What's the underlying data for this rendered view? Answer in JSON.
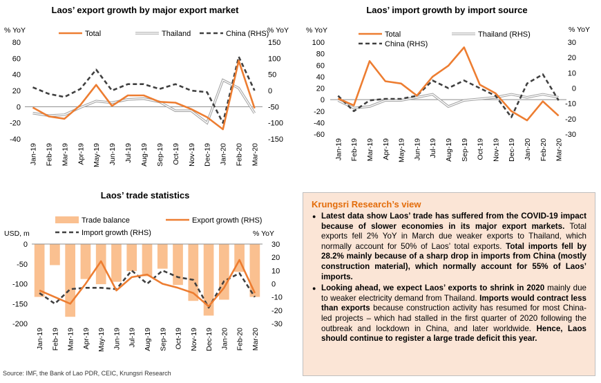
{
  "colors": {
    "total": "#ed7d31",
    "thailand": "#a6a6a6",
    "china": "#404040",
    "trade_balance": "#fac090",
    "box_bg": "#fbe5d6",
    "box_title": "#e36c0a"
  },
  "chart_data": [
    {
      "type": "line",
      "title": "Laos’ export growth by major export market",
      "ylabel": "% YoY",
      "y2label": "% YoY",
      "ylim": [
        -40,
        80
      ],
      "yticks": [
        -40,
        -20,
        0,
        20,
        40,
        60,
        80
      ],
      "y2lim": [
        -150,
        150
      ],
      "y2ticks": [
        -150,
        -100,
        -50,
        0,
        50,
        100,
        150
      ],
      "legend_position": "top",
      "categories": [
        "Jan-19",
        "Feb-19",
        "Mar-19",
        "Apr-19",
        "May-19",
        "Jun-19",
        "Jul-19",
        "Aug-19",
        "Sep-19",
        "Oct-19",
        "Nov-19",
        "Dec-19",
        "Jan-20",
        "Feb-20",
        "Mar-20"
      ],
      "series": [
        {
          "name": "Total",
          "axis": "left",
          "style": "total",
          "values": [
            -1,
            -12,
            -15,
            2,
            27,
            1,
            14,
            14,
            6,
            5,
            -3,
            -13,
            -28,
            57,
            -2
          ]
        },
        {
          "name": "Thailand",
          "axis": "left",
          "style": "thailand",
          "values": [
            -8,
            -11,
            -10,
            -1,
            7,
            5,
            9,
            10,
            6,
            -5,
            -5,
            -20,
            33,
            23,
            -8
          ]
        },
        {
          "name": "China (RHS)",
          "axis": "right",
          "style": "china",
          "values": [
            10,
            -10,
            -20,
            5,
            65,
            0,
            20,
            20,
            5,
            20,
            0,
            -5,
            -100,
            105,
            0
          ]
        }
      ]
    },
    {
      "type": "line",
      "title": "Laos’ import growth by import source",
      "ylabel": "% YoY",
      "y2label": "% YoY",
      "ylim": [
        -60,
        100
      ],
      "yticks": [
        -60,
        -40,
        -20,
        0,
        20,
        40,
        60,
        80,
        100
      ],
      "y2lim": [
        -30,
        30
      ],
      "y2ticks": [
        -30,
        -20,
        -10,
        0,
        10,
        20,
        30
      ],
      "legend_position": "top",
      "categories": [
        "Jan-19",
        "Feb-19",
        "Mar-19",
        "Apr-19",
        "May-19",
        "Jun-19",
        "Jul-19",
        "Aug-19",
        "Sep-19",
        "Oct-19",
        "Nov-19",
        "Dec-19",
        "Jan-20",
        "Feb-20",
        "Mar-20"
      ],
      "series": [
        {
          "name": "Total",
          "axis": "left",
          "style": "total",
          "values": [
            2,
            -10,
            67,
            32,
            28,
            7,
            40,
            59,
            91,
            26,
            11,
            -20,
            -36,
            -3,
            -28
          ]
        },
        {
          "name": "Thailand (RHS)",
          "axis": "right",
          "style": "thailand",
          "values": [
            -8,
            -13,
            -12,
            -8,
            -8,
            -6,
            -4,
            -12,
            -8,
            -7,
            -6,
            -4,
            -6,
            -4,
            -6
          ]
        },
        {
          "name": "China (RHS)",
          "axis": "right",
          "style": "china",
          "values": [
            -5,
            -15,
            -8,
            -7,
            -7,
            -5,
            5,
            0,
            5,
            0,
            -5,
            -19,
            3,
            9,
            -8
          ]
        }
      ]
    },
    {
      "type": "bar",
      "title": "Laos’ trade statistics",
      "ylabel": "USD, m",
      "y2label": "% YoY",
      "ylim": [
        -200,
        0
      ],
      "yticks": [
        -200,
        -150,
        -100,
        -50,
        0
      ],
      "y2lim": [
        -30,
        30
      ],
      "y2ticks": [
        -30,
        -20,
        -10,
        0,
        10,
        20,
        30
      ],
      "legend_position": "top",
      "categories": [
        "Jan-19",
        "Feb-19",
        "Mar-19",
        "Apr-19",
        "May-19",
        "Jun-19",
        "Jul-19",
        "Aug-19",
        "Sep-19",
        "Oct-19",
        "Nov-19",
        "Dec-19",
        "Jan-20",
        "Feb-20",
        "Mar-20"
      ],
      "series": [
        {
          "name": "Trade balance",
          "axis": "left",
          "style": "bar",
          "values": [
            -133,
            -53,
            -183,
            -88,
            -101,
            -95,
            -68,
            -81,
            -62,
            -103,
            -143,
            -180,
            -140,
            -70,
            -133
          ]
        },
        {
          "name": "Export growth (RHS)",
          "axis": "right",
          "style": "total",
          "values": [
            -5,
            -10,
            -15,
            0,
            17,
            -5,
            5,
            7,
            0,
            -3,
            -7,
            -17,
            -3,
            18,
            -7
          ]
        },
        {
          "name": "Import growth (RHS)",
          "axis": "right",
          "style": "china",
          "values": [
            -7,
            -15,
            -4,
            -3,
            -3,
            -4,
            10,
            0,
            10,
            5,
            3,
            -18,
            2,
            8,
            -10
          ]
        }
      ]
    }
  ],
  "view_box": {
    "title": "Krungsri Research’s view",
    "bullets": [
      [
        {
          "b": true,
          "t": "Latest data show Laos’ trade has suffered from the COVID-19 impact because of slower economies in its major export markets."
        },
        {
          "b": false,
          "t": " Total exports fell 2% YoY in March due weaker exports to Thailand, which normally account for 50% of Laos’ total exports. "
        },
        {
          "b": true,
          "t": "Total imports fell by 28.2% mainly because of a sharp drop in imports from China (mostly construction material), which normally account for 55% of Laos’ imports."
        }
      ],
      [
        {
          "b": true,
          "t": "Looking ahead, we expect Laos’ exports to shrink in 2020"
        },
        {
          "b": false,
          "t": " mainly due to weaker electricity demand from Thailand. "
        },
        {
          "b": true,
          "t": "Imports would contract less than exports"
        },
        {
          "b": false,
          "t": " because construction activity has resumed for most China-led projects – which had stalled in the first quarter of 2020 following the outbreak and lockdown in China, and later worldwide. "
        },
        {
          "b": true,
          "t": "Hence, Laos should continue to register a large trade deficit this year."
        }
      ]
    ]
  },
  "source": "Source: IMF, the Bank of Lao PDR, CEIC, Krungsri Research"
}
